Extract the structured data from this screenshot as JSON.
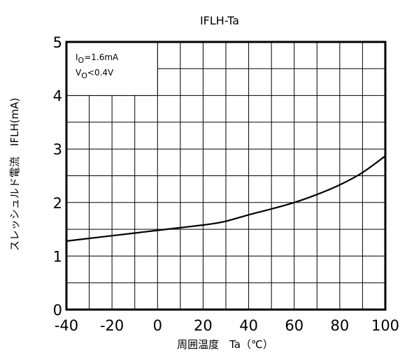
{
  "chart_data": {
    "type": "line",
    "title_main": "IFLH",
    "title_suffix": "-Ta",
    "xlabel": "周囲温度　Ta（℃）",
    "ylabel": "スレッシュルド電流　IFLH(mA)",
    "xlim": [
      -40,
      100
    ],
    "ylim": [
      0,
      5
    ],
    "xticks": [
      -40,
      -20,
      0,
      20,
      40,
      60,
      80,
      100
    ],
    "yticks": [
      0,
      1,
      2,
      3,
      4,
      5
    ],
    "x_minor_step": 10,
    "y_minor_step": 0.5,
    "grid": true,
    "conditions": [
      {
        "base": "I",
        "sub": "O",
        "rest": "=1.6mA"
      },
      {
        "base": "V",
        "sub": "O",
        "rest": "<0.4V"
      }
    ],
    "series": [
      {
        "x": [
          -40,
          -30,
          -20,
          -10,
          0,
          10,
          20,
          25,
          30,
          40,
          50,
          60,
          70,
          80,
          90,
          100
        ],
        "values": [
          1.28,
          1.33,
          1.38,
          1.43,
          1.48,
          1.53,
          1.58,
          1.61,
          1.65,
          1.77,
          1.88,
          2.0,
          2.15,
          2.33,
          2.56,
          2.87
        ]
      }
    ]
  }
}
